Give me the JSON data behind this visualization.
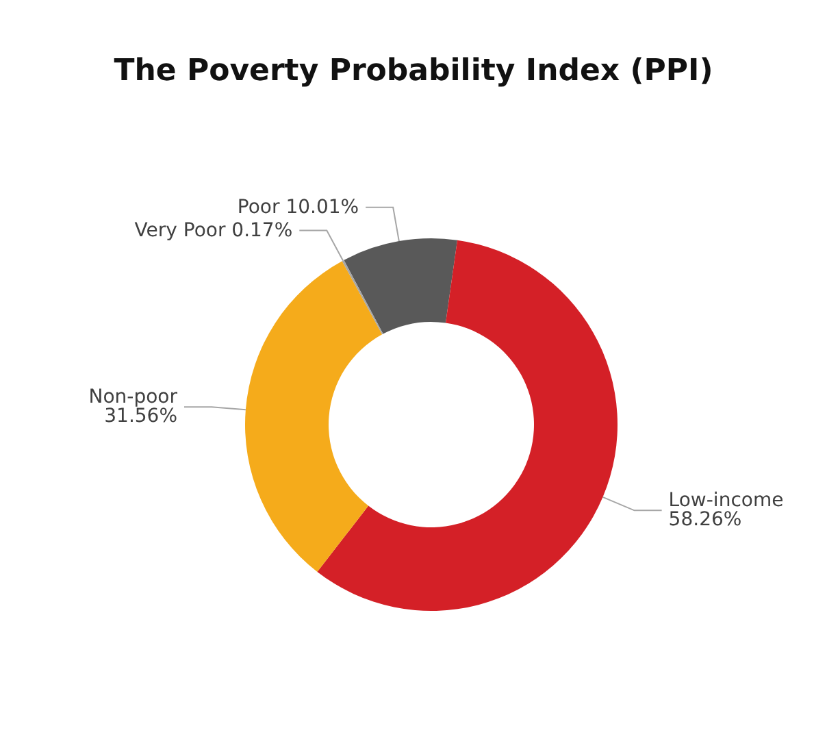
{
  "chart_data": {
    "type": "donut",
    "title": "The Poverty Probability Index (PPI)",
    "categories": [
      "Poor",
      "Low-income",
      "Non-poor",
      "Very Poor"
    ],
    "values": [
      10.01,
      58.26,
      31.56,
      0.17
    ],
    "colors": [
      "#595959",
      "#d42027",
      "#f5ab1b",
      "#a6a6a6"
    ],
    "value_labels": [
      "10.01%",
      "58.26%",
      "31.56%",
      "0.17%"
    ],
    "legend": false
  }
}
